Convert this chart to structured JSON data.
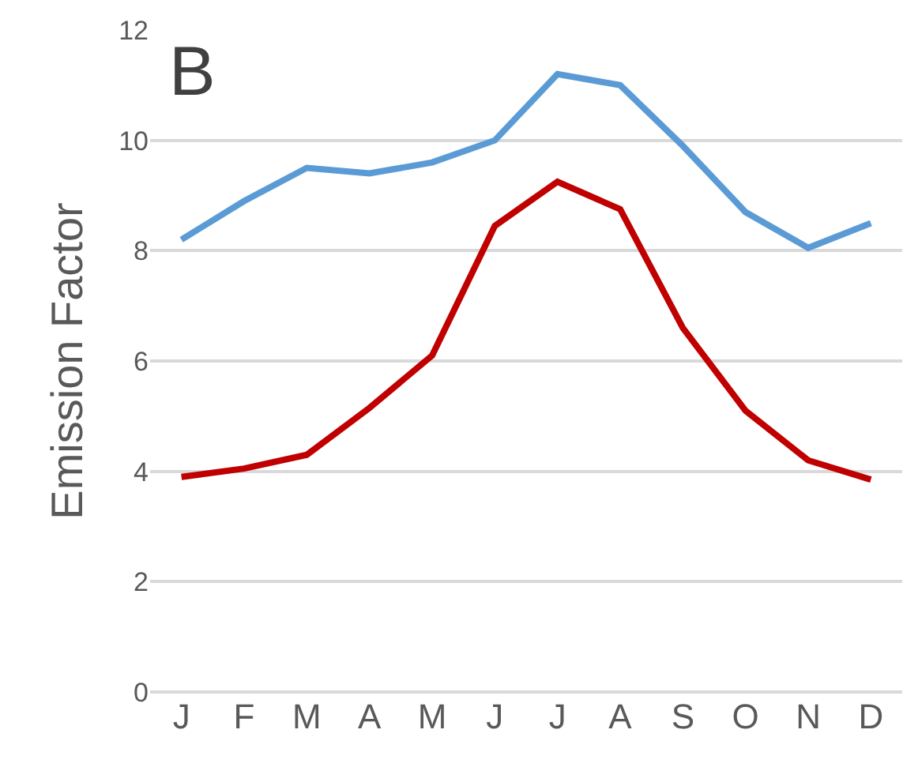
{
  "chart_data": {
    "type": "line",
    "ylabel": "Emission Factor",
    "annotations": [
      "B"
    ],
    "categories": [
      "J",
      "F",
      "M",
      "A",
      "M",
      "J",
      "J",
      "A",
      "S",
      "O",
      "N",
      "D"
    ],
    "series": [
      {
        "color": "#5b9bd5",
        "values": [
          8.2,
          8.9,
          9.5,
          9.4,
          9.6,
          10.0,
          11.2,
          11.0,
          9.9,
          8.7,
          8.05,
          8.5
        ]
      },
      {
        "color": "#c00000",
        "values": [
          3.9,
          4.05,
          4.3,
          5.15,
          6.1,
          8.45,
          9.25,
          8.75,
          6.6,
          5.1,
          4.2,
          3.85
        ]
      }
    ],
    "ylim": [
      0,
      12
    ],
    "yticks": [
      0,
      2,
      4,
      6,
      8,
      10,
      12
    ],
    "grid": "y",
    "marker": "none",
    "line_style": "solid"
  }
}
